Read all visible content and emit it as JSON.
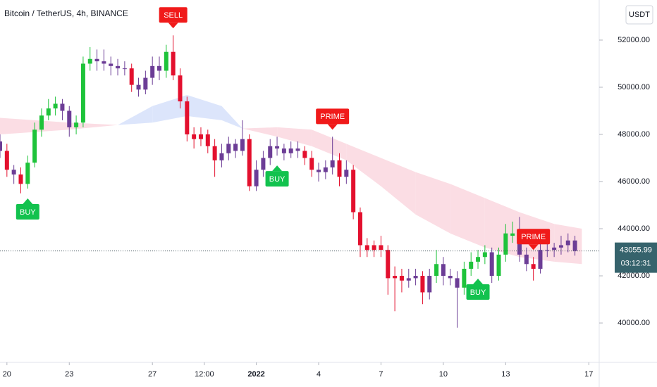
{
  "chart_data": {
    "type": "candlestick",
    "title": "Bitcoin / TetherUS, 4h, BINANCE",
    "quote_currency": "USDT",
    "last_price": 43055.99,
    "countdown": "03:12:31",
    "ylim": [
      38330,
      53700
    ],
    "yticks": [
      {
        "value": 40000,
        "label": "40000.00"
      },
      {
        "value": 42000,
        "label": "42000.00"
      },
      {
        "value": 44000,
        "label": "44000.00"
      },
      {
        "value": 46000,
        "label": "46000.00"
      },
      {
        "value": 48000,
        "label": "48000.00"
      },
      {
        "value": 50000,
        "label": "50000.00"
      },
      {
        "value": 52000,
        "label": "52000.00"
      }
    ],
    "xlim": [
      0,
      86.5
    ],
    "xticks": [
      {
        "value": 1,
        "label": "20"
      },
      {
        "value": 10,
        "label": "23"
      },
      {
        "value": 22,
        "label": "27"
      },
      {
        "value": 29.5,
        "label": "12:00"
      },
      {
        "value": 37,
        "label": "2022",
        "bold": true
      },
      {
        "value": 46,
        "label": "4"
      },
      {
        "value": 55,
        "label": "7"
      },
      {
        "value": 64,
        "label": "10"
      },
      {
        "value": 73,
        "label": "13"
      },
      {
        "value": 85,
        "label": "17"
      }
    ],
    "palette": {
      "g": "#1ec33a",
      "r": "#e3102e",
      "p": "#6c3d96"
    },
    "open": [
      47700,
      47300,
      46500,
      46300,
      45900,
      46800,
      48200,
      48800,
      49100,
      49300,
      49000,
      48300,
      48500,
      51000,
      51200,
      51100,
      51000,
      50900,
      50800,
      50800,
      50100,
      49900,
      50400,
      50900,
      50700,
      51500,
      50500,
      49400,
      48000,
      47800,
      48000,
      47500,
      46900,
      47200,
      47600,
      47300,
      47800,
      45800,
      46500,
      47000,
      47500,
      47400,
      47200,
      47400,
      47300,
      47000,
      46500,
      46400,
      46600,
      46900,
      46200,
      46500,
      44700,
      43300,
      43100,
      43300,
      43100,
      41900,
      42000,
      41800,
      41900,
      42000,
      41300,
      42000,
      42500,
      42000,
      41900,
      41500,
      42300,
      42600,
      42800,
      43000,
      42000,
      42900,
      43800,
      43700,
      42900,
      42500,
      42300,
      43100,
      43100,
      43200,
      43300,
      43500
    ],
    "high": [
      48000,
      47600,
      46700,
      46600,
      47100,
      48500,
      49100,
      49500,
      49600,
      49500,
      49200,
      48800,
      51300,
      51700,
      51600,
      51600,
      51300,
      51200,
      51100,
      51000,
      50400,
      50700,
      51300,
      51300,
      51800,
      52200,
      50800,
      49600,
      48300,
      48300,
      48200,
      47800,
      47600,
      47900,
      47800,
      48600,
      48000,
      46900,
      47300,
      47800,
      47900,
      47600,
      47700,
      47700,
      47500,
      47300,
      46800,
      46900,
      47900,
      47200,
      46900,
      46700,
      44900,
      43600,
      43500,
      43700,
      43300,
      42400,
      42300,
      42300,
      42300,
      42200,
      42300,
      43100,
      42800,
      42300,
      42200,
      42600,
      43000,
      43100,
      43300,
      43200,
      43200,
      44200,
      44300,
      44500,
      43200,
      42800,
      43400,
      43400,
      43400,
      43700,
      43800,
      43700
    ],
    "low": [
      47000,
      46200,
      45900,
      45500,
      45700,
      46600,
      47900,
      48600,
      48800,
      48600,
      47900,
      48000,
      48300,
      50700,
      50700,
      50700,
      50500,
      50500,
      50500,
      49800,
      49600,
      49700,
      50100,
      50300,
      50400,
      50300,
      49100,
      47700,
      47400,
      47500,
      47200,
      46200,
      46600,
      46900,
      47000,
      47100,
      45600,
      45600,
      46200,
      46700,
      47100,
      46900,
      47000,
      47000,
      46700,
      46200,
      46000,
      46100,
      46300,
      45800,
      45900,
      44400,
      42800,
      42800,
      42800,
      42800,
      41200,
      40500,
      41300,
      41500,
      41600,
      40800,
      41000,
      41700,
      41600,
      41600,
      39800,
      41200,
      42000,
      42300,
      42500,
      41700,
      41800,
      42600,
      43400,
      42600,
      42200,
      41800,
      42100,
      42800,
      42800,
      42900,
      43000,
      42856
    ],
    "close": [
      47300,
      46500,
      46300,
      45900,
      46800,
      48200,
      48800,
      49100,
      49300,
      49000,
      48300,
      48500,
      51000,
      51200,
      51100,
      51000,
      50900,
      50800,
      50800,
      50100,
      49900,
      50400,
      50900,
      50700,
      51500,
      50500,
      49400,
      48000,
      47800,
      48000,
      47500,
      46900,
      47200,
      47600,
      47300,
      47800,
      45800,
      46500,
      47000,
      47500,
      47400,
      47200,
      47400,
      47300,
      47000,
      46500,
      46400,
      46600,
      46900,
      46200,
      46500,
      44700,
      43300,
      43100,
      43300,
      43100,
      41900,
      42000,
      41800,
      41900,
      42000,
      41300,
      42000,
      42500,
      42000,
      41900,
      41500,
      42300,
      42600,
      42800,
      43000,
      42000,
      42900,
      43800,
      43700,
      42900,
      42500,
      42300,
      43100,
      43100,
      43200,
      43300,
      43500,
      43056
    ],
    "candle_colors": [
      "p",
      "r",
      "p",
      "r",
      "g",
      "g",
      "g",
      "g",
      "g",
      "p",
      "p",
      "g",
      "g",
      "g",
      "p",
      "p",
      "p",
      "p",
      "p",
      "r",
      "p",
      "p",
      "p",
      "p",
      "g",
      "r",
      "r",
      "r",
      "r",
      "r",
      "r",
      "r",
      "p",
      "p",
      "p",
      "p",
      "r",
      "p",
      "p",
      "p",
      "p",
      "p",
      "p",
      "p",
      "r",
      "r",
      "p",
      "p",
      "p",
      "r",
      "p",
      "r",
      "r",
      "r",
      "r",
      "r",
      "r",
      "r",
      "r",
      "p",
      "p",
      "r",
      "p",
      "g",
      "p",
      "p",
      "p",
      "g",
      "g",
      "g",
      "g",
      "p",
      "g",
      "g",
      "g",
      "p",
      "p",
      "r",
      "p",
      "p",
      "p",
      "p",
      "p",
      "p"
    ],
    "band": {
      "x": [
        0,
        10,
        17,
        22,
        27,
        32,
        35,
        40,
        45,
        50,
        55,
        60,
        65,
        70,
        75,
        80,
        84
      ],
      "fast": [
        48000,
        48200,
        48400,
        49200,
        49670,
        49200,
        48250,
        47900,
        47500,
        46900,
        45800,
        44600,
        43800,
        43200,
        42800,
        42600,
        42500
      ],
      "slow": [
        48700,
        48500,
        48400,
        48500,
        48780,
        48600,
        48250,
        48300,
        48200,
        47600,
        47000,
        46400,
        45900,
        45300,
        44700,
        44200,
        44000
      ],
      "bull_color": "#dce5fb",
      "bear_color": "#fbdde4"
    },
    "signals": [
      {
        "label": "BUY",
        "index": 4,
        "side": "below",
        "color": "#12c24e"
      },
      {
        "label": "SELL",
        "index": 25,
        "side": "above",
        "color": "#f01a1a"
      },
      {
        "label": "BUY",
        "index": 40,
        "side": "below",
        "color": "#12c24e"
      },
      {
        "label": "PRIME",
        "index": 48,
        "side": "above",
        "color": "#f01a1a"
      },
      {
        "label": "BUY",
        "index": 69,
        "side": "below",
        "color": "#12c24e"
      },
      {
        "label": "PRIME",
        "index": 77,
        "side": "above",
        "color": "#f01a1a"
      }
    ]
  }
}
